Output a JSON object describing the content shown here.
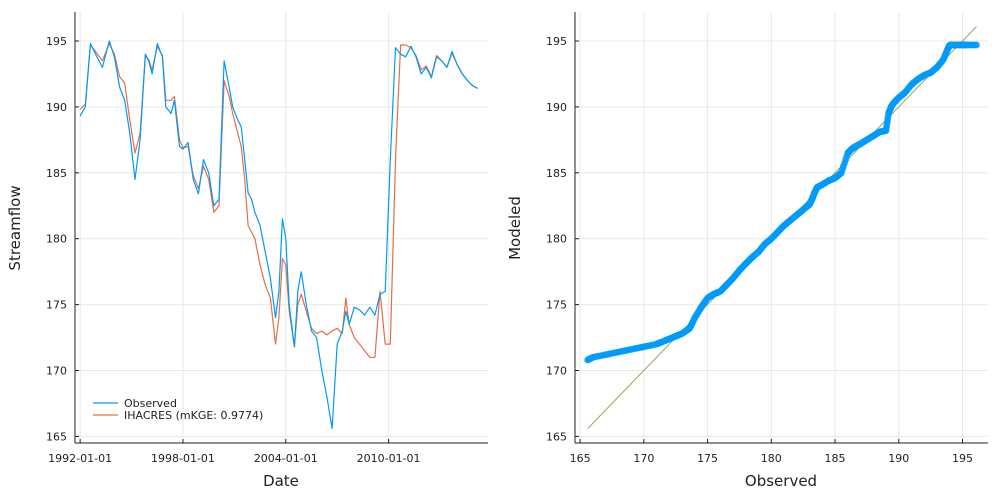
{
  "chart_data": [
    {
      "type": "line",
      "xlabel": "Date",
      "ylabel": "Streamflow",
      "x_ticks": [
        "1992-01-01",
        "1998-01-01",
        "2004-01-01",
        "2010-01-01"
      ],
      "x_tick_years": [
        1992,
        1998,
        2004,
        2010
      ],
      "y_ticks": [
        165,
        170,
        175,
        180,
        185,
        190,
        195
      ],
      "xlim": [
        1991.7,
        2015.8
      ],
      "ylim": [
        164.5,
        197.2
      ],
      "grid": true,
      "legend_position": "bottom-left",
      "colors": {
        "observed": "#009AFA",
        "modeled": "#E26F46"
      },
      "series": [
        {
          "name": "Observed",
          "x": [
            1992.0,
            1992.3,
            1992.6,
            1992.9,
            1993.3,
            1993.7,
            1994.0,
            1994.3,
            1994.6,
            1994.9,
            1995.2,
            1995.5,
            1995.8,
            1996.0,
            1996.2,
            1996.5,
            1996.8,
            1997.0,
            1997.3,
            1997.5,
            1997.8,
            1998.0,
            1998.3,
            1998.6,
            1998.9,
            1999.2,
            1999.5,
            1999.8,
            2000.1,
            2000.4,
            2000.7,
            2000.9,
            2001.2,
            2001.4,
            2001.6,
            2001.8,
            2002.0,
            2002.2,
            2002.5,
            2002.8,
            2003.1,
            2003.4,
            2003.6,
            2003.8,
            2004.0,
            2004.2,
            2004.5,
            2004.7,
            2004.9,
            2005.2,
            2005.5,
            2005.8,
            2006.1,
            2006.4,
            2006.7,
            2007.0,
            2007.3,
            2007.5,
            2007.7,
            2008.0,
            2008.3,
            2008.6,
            2008.9,
            2009.2,
            2009.5,
            2009.8,
            2010.1,
            2010.4,
            2010.7,
            2011.0,
            2011.3,
            2011.6,
            2011.9,
            2012.2,
            2012.5,
            2012.8,
            2013.1,
            2013.4,
            2013.7,
            2014.0,
            2014.3,
            2014.6,
            2014.9,
            2015.2
          ],
          "y": [
            189.3,
            190.0,
            194.8,
            194.0,
            193.0,
            195.0,
            193.8,
            191.5,
            190.5,
            188.0,
            184.5,
            187.5,
            194.0,
            193.5,
            192.5,
            194.8,
            193.8,
            190.0,
            189.5,
            190.5,
            187.0,
            186.8,
            187.3,
            184.5,
            183.4,
            186.0,
            185.0,
            182.5,
            183.0,
            193.5,
            191.5,
            190.0,
            189.0,
            188.5,
            186.0,
            183.5,
            183.0,
            182.0,
            181.0,
            179.0,
            177.0,
            174.0,
            176.0,
            181.5,
            180.0,
            175.0,
            171.8,
            176.0,
            177.5,
            175.0,
            173.0,
            172.5,
            170.0,
            168.0,
            165.6,
            172.0,
            173.0,
            174.5,
            173.5,
            174.8,
            174.6,
            174.2,
            174.8,
            174.2,
            175.8,
            176.0,
            186.0,
            194.5,
            194.0,
            193.8,
            194.6,
            193.8,
            192.5,
            193.0,
            192.2,
            193.8,
            193.5,
            193.0,
            194.2,
            193.2,
            192.5,
            192.0,
            191.6,
            191.4
          ]
        },
        {
          "name": "IHACRES (mKGE: 0.9774)",
          "x": [
            1992.0,
            1992.3,
            1992.6,
            1992.9,
            1993.3,
            1993.7,
            1994.0,
            1994.3,
            1994.6,
            1994.9,
            1995.2,
            1995.5,
            1995.8,
            1996.0,
            1996.2,
            1996.5,
            1996.8,
            1997.0,
            1997.3,
            1997.5,
            1997.8,
            1998.0,
            1998.3,
            1998.6,
            1998.9,
            1999.2,
            1999.5,
            1999.8,
            2000.1,
            2000.4,
            2000.7,
            2000.9,
            2001.2,
            2001.4,
            2001.6,
            2001.8,
            2002.0,
            2002.2,
            2002.5,
            2002.8,
            2003.1,
            2003.4,
            2003.6,
            2003.8,
            2004.0,
            2004.2,
            2004.5,
            2004.7,
            2004.9,
            2005.2,
            2005.5,
            2005.8,
            2006.1,
            2006.4,
            2006.7,
            2007.0,
            2007.3,
            2007.5,
            2007.7,
            2008.0,
            2008.3,
            2008.6,
            2008.9,
            2009.2,
            2009.5,
            2009.8,
            2010.1,
            2010.4,
            2010.7,
            2011.0,
            2011.3,
            2011.6,
            2011.9,
            2012.2,
            2012.5,
            2012.8,
            2013.1,
            2013.4,
            2013.7,
            2014.0,
            2014.3,
            2014.6,
            2014.9,
            2015.2
          ],
          "y": [
            189.8,
            190.2,
            194.7,
            194.2,
            193.5,
            194.8,
            194.0,
            192.3,
            191.8,
            189.0,
            186.5,
            188.0,
            193.8,
            193.6,
            192.8,
            194.6,
            193.9,
            190.5,
            190.5,
            190.8,
            187.5,
            186.9,
            187.0,
            184.8,
            183.8,
            185.5,
            184.5,
            182.0,
            182.5,
            192.0,
            190.8,
            189.5,
            188.0,
            187.0,
            184.5,
            181.0,
            180.5,
            180.0,
            178.0,
            176.5,
            175.5,
            172.0,
            174.0,
            178.5,
            178.0,
            174.5,
            171.8,
            175.0,
            175.8,
            174.5,
            173.2,
            172.8,
            173.0,
            172.7,
            173.0,
            173.2,
            172.8,
            175.5,
            173.5,
            172.5,
            172.0,
            171.5,
            171.0,
            171.0,
            176.0,
            172.0,
            172.0,
            186.0,
            194.7,
            194.7,
            194.5,
            193.9,
            192.8,
            193.1,
            192.3,
            193.9,
            193.5,
            193.0,
            194.1,
            193.2,
            192.5,
            192.0,
            191.6,
            191.4
          ]
        }
      ]
    },
    {
      "type": "scatter",
      "xlabel": "Observed",
      "ylabel": "Modeled",
      "x_ticks": [
        165,
        170,
        175,
        180,
        185,
        190,
        195
      ],
      "y_ticks": [
        165,
        170,
        175,
        180,
        185,
        190,
        195
      ],
      "xlim": [
        164.6,
        197.0
      ],
      "ylim": [
        164.5,
        197.2
      ],
      "grid": true,
      "colors": {
        "points": "#009AFA",
        "reference": "#8DB16A"
      },
      "reference_line": [
        [
          165.6,
          165.6
        ],
        [
          196.1,
          196.1
        ]
      ],
      "series": [
        {
          "x": [
            165.6,
            166.0,
            167.0,
            168.0,
            169.0,
            170.0,
            171.0,
            171.5,
            172.0,
            172.5,
            173.0,
            173.6,
            174.0,
            174.5,
            175.0,
            175.5,
            176.0,
            176.5,
            177.0,
            177.5,
            178.0,
            178.5,
            179.0,
            179.5,
            180.0,
            180.5,
            181.0,
            181.5,
            182.0,
            182.5,
            183.0,
            183.2,
            183.4,
            183.6,
            184.0,
            184.5,
            185.0,
            185.5,
            186.0,
            186.3,
            186.6,
            187.0,
            187.5,
            188.0,
            188.5,
            189.0,
            189.2,
            189.4,
            189.6,
            190.0,
            190.5,
            191.0,
            191.5,
            192.0,
            192.5,
            193.0,
            193.5,
            193.8,
            194.0,
            194.5,
            195.0,
            195.3,
            196.1
          ],
          "y": [
            170.8,
            171.0,
            171.2,
            171.4,
            171.6,
            171.8,
            172.0,
            172.2,
            172.4,
            172.6,
            172.8,
            173.2,
            174.0,
            174.8,
            175.5,
            175.8,
            176.0,
            176.5,
            177.0,
            177.6,
            178.1,
            178.6,
            179.0,
            179.6,
            180.0,
            180.5,
            181.0,
            181.4,
            181.8,
            182.2,
            182.6,
            183.0,
            183.5,
            183.9,
            184.1,
            184.4,
            184.6,
            185.0,
            186.5,
            186.8,
            187.0,
            187.2,
            187.5,
            187.8,
            188.1,
            188.2,
            189.5,
            190.0,
            190.3,
            190.7,
            191.1,
            191.7,
            192.1,
            192.4,
            192.6,
            193.0,
            193.6,
            194.3,
            194.7,
            194.7,
            194.7,
            194.7,
            194.7
          ]
        }
      ]
    }
  ]
}
